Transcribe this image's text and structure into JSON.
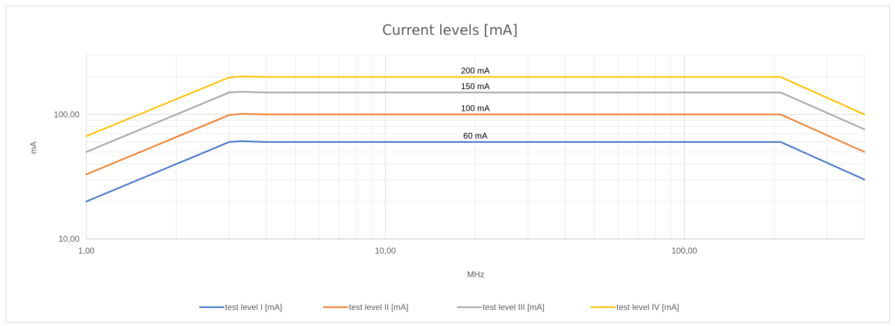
{
  "chart_data": {
    "type": "line",
    "title": "Current levels [mA]",
    "xlabel": "MHz",
    "ylabel": "mA",
    "x_scale": "log",
    "y_scale": "log",
    "xlim": [
      1,
      400
    ],
    "ylim": [
      10,
      300
    ],
    "x_ticks": [
      {
        "value": 1,
        "label": "1,00"
      },
      {
        "value": 10,
        "label": "10,00"
      },
      {
        "value": 100,
        "label": "100,00"
      }
    ],
    "y_ticks": [
      {
        "value": 10,
        "label": "10,00"
      },
      {
        "value": 100,
        "label": "100,00"
      }
    ],
    "grid": true,
    "legend_position": "bottom",
    "series": [
      {
        "name": "test level I [mA]",
        "color": "#4472C4",
        "points": [
          [
            1,
            20
          ],
          [
            2.8,
            56
          ],
          [
            3,
            60
          ],
          [
            3.3,
            61
          ],
          [
            4,
            60
          ],
          [
            200,
            60
          ],
          [
            210,
            60
          ],
          [
            400,
            30
          ]
        ]
      },
      {
        "name": "test level II [mA]",
        "color": "#ED7D31",
        "points": [
          [
            1,
            33
          ],
          [
            2.8,
            92
          ],
          [
            3,
            99
          ],
          [
            3.3,
            101
          ],
          [
            4,
            100
          ],
          [
            200,
            100
          ],
          [
            210,
            100
          ],
          [
            400,
            50
          ]
        ]
      },
      {
        "name": "test level III [mA]",
        "color": "#A5A5A5",
        "points": [
          [
            1,
            50
          ],
          [
            2.8,
            140
          ],
          [
            3,
            150
          ],
          [
            3.3,
            152
          ],
          [
            4,
            150
          ],
          [
            200,
            150
          ],
          [
            210,
            150
          ],
          [
            400,
            76
          ]
        ]
      },
      {
        "name": "test level IV [mA]",
        "color": "#FFC000",
        "points": [
          [
            1,
            67
          ],
          [
            2.8,
            185
          ],
          [
            3,
            198
          ],
          [
            3.3,
            202
          ],
          [
            4,
            200
          ],
          [
            200,
            200
          ],
          [
            210,
            200
          ],
          [
            400,
            100
          ]
        ]
      }
    ],
    "annotations": [
      {
        "text": "200 mA",
        "x": 20,
        "y": 200
      },
      {
        "text": "150 mA",
        "x": 20,
        "y": 150
      },
      {
        "text": "100 mA",
        "x": 20,
        "y": 100
      },
      {
        "text": "60 mA",
        "x": 20,
        "y": 60
      }
    ]
  }
}
